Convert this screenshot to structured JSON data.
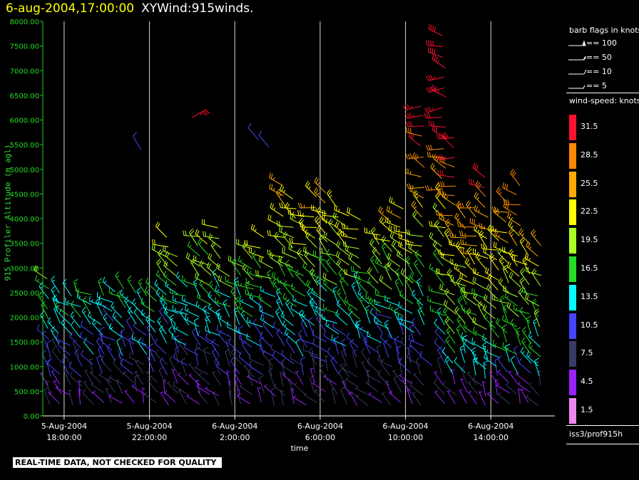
{
  "title": {
    "date": "6-aug-2004,17:00:00",
    "name": "XYWind:915winds."
  },
  "chart_data": {
    "type": "wind-barb",
    "ylabel": "915 Profiler Altitude (m agl)",
    "xlabel": "time",
    "ylim": [
      0,
      8000
    ],
    "yticks": [
      "0.00",
      "500.00",
      "1000.00",
      "1500.00",
      "2000.00",
      "2500.00",
      "3000.00",
      "3500.00",
      "4000.00",
      "4500.00",
      "5000.00",
      "5500.00",
      "6000.00",
      "6500.00",
      "7000.00",
      "7500.00",
      "8000.00"
    ],
    "xticks": [
      {
        "line1": "5-Aug-2004",
        "line2": "18:00:00",
        "hour": 1
      },
      {
        "line1": "5-Aug-2004",
        "line2": "22:00:00",
        "hour": 5
      },
      {
        "line1": "6-Aug-2004",
        "line2": "2:00:00",
        "hour": 9
      },
      {
        "line1": "6-Aug-2004",
        "line2": "6:00:00",
        "hour": 13
      },
      {
        "line1": "6-Aug-2004",
        "line2": "10:00:00",
        "hour": 17
      },
      {
        "line1": "6-Aug-2004",
        "line2": "14:00:00",
        "hour": 21
      }
    ],
    "xrange_hours": [
      0,
      24.0
    ],
    "grid": "vertical"
  },
  "legend": {
    "barb_title": "barb flags in knots",
    "barb_items": [
      "== 100",
      "== 50",
      "== 10",
      "== 5"
    ],
    "speed_title": "wind-speed: knots",
    "speeds": [
      {
        "label": "31.5",
        "color": "#ff1030"
      },
      {
        "label": "28.5",
        "color": "#ff8800"
      },
      {
        "label": "25.5",
        "color": "#ffaa00"
      },
      {
        "label": "22.5",
        "color": "#ffff00"
      },
      {
        "label": "19.5",
        "color": "#aaff22"
      },
      {
        "label": "16.5",
        "color": "#22dd22"
      },
      {
        "label": "13.5",
        "color": "#00ffff"
      },
      {
        "label": "10.5",
        "color": "#4444ff"
      },
      {
        "label": "7.5",
        "color": "#3a3a66"
      },
      {
        "label": "4.5",
        "color": "#9922ff"
      },
      {
        "label": "1.5",
        "color": "#ee88ee"
      }
    ]
  },
  "footer": {
    "source": "iss3/prof915h",
    "qc_note": "REAL-TIME DATA, NOT CHECKED FOR QUALITY"
  }
}
